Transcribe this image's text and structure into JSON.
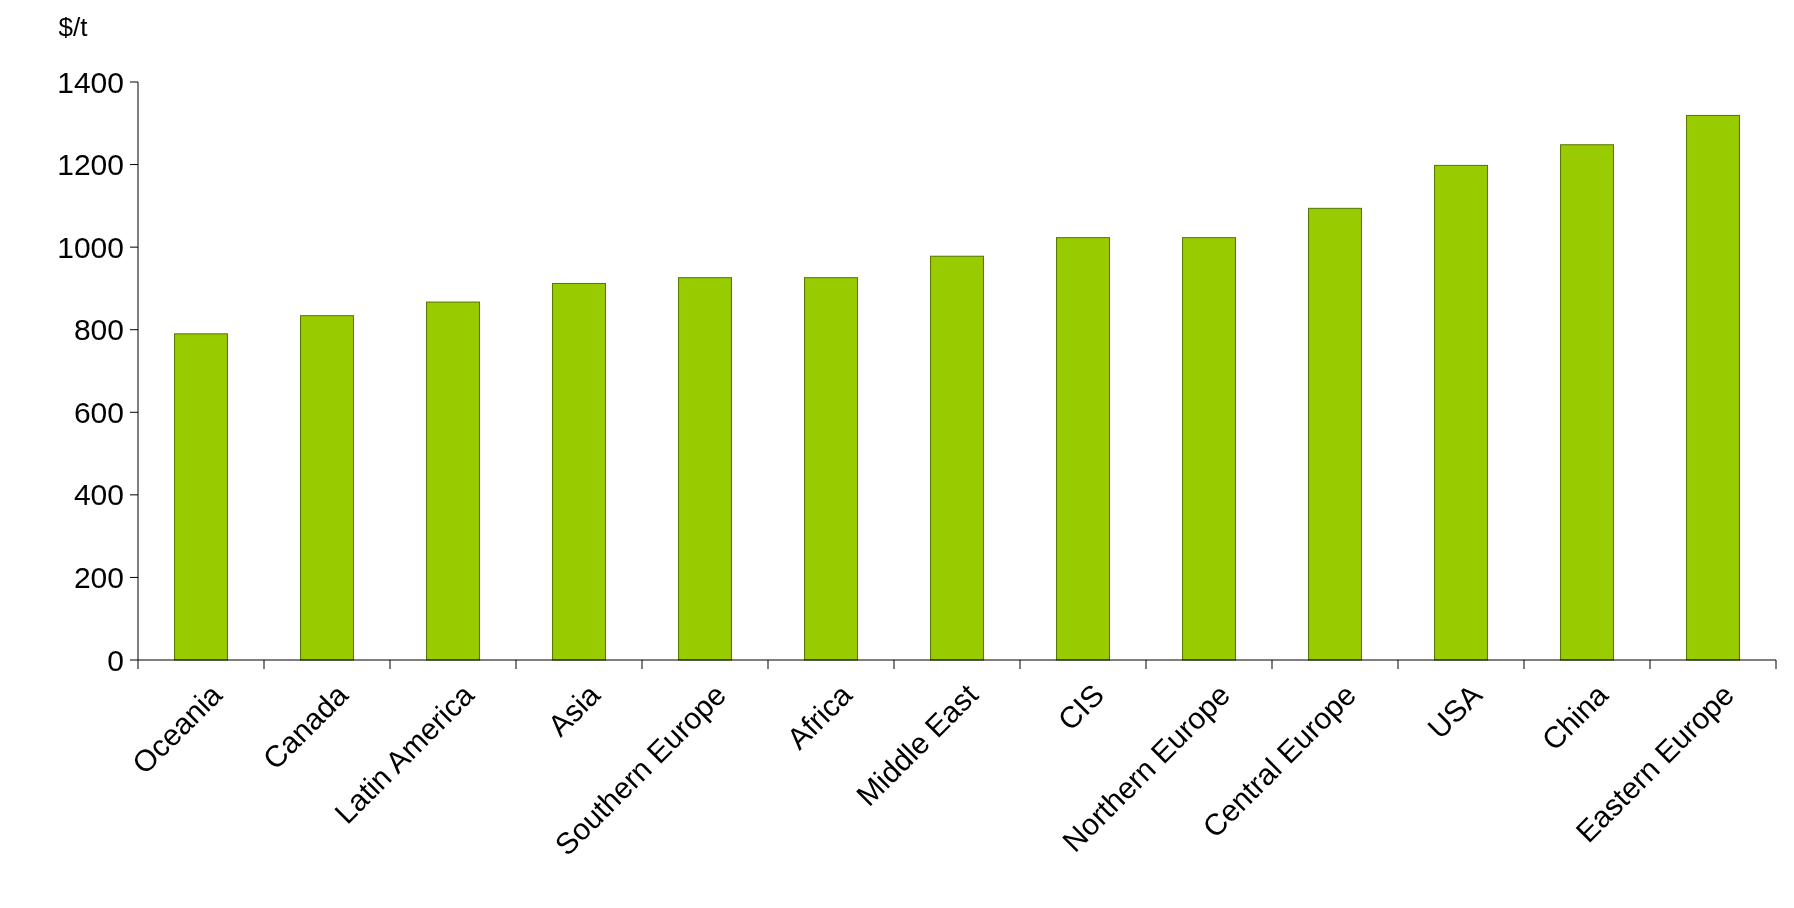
{
  "chart_data": {
    "type": "bar",
    "ylabel": "$/t",
    "categories": [
      "Oceania",
      "Canada",
      "Latin America",
      "Asia",
      "Southern Europe",
      "Africa",
      "Middle East",
      "CIS",
      "Northern Europe",
      "Central Europe",
      "USA",
      "China",
      "Eastern Europe"
    ],
    "values": [
      790,
      834,
      867,
      912,
      926,
      926,
      978,
      1023,
      1023,
      1094,
      1198,
      1248,
      1319
    ],
    "color": "#99cc00",
    "ylim": [
      0,
      1400
    ],
    "yticks": [
      0,
      200,
      400,
      600,
      800,
      1000,
      1200,
      1400
    ]
  }
}
